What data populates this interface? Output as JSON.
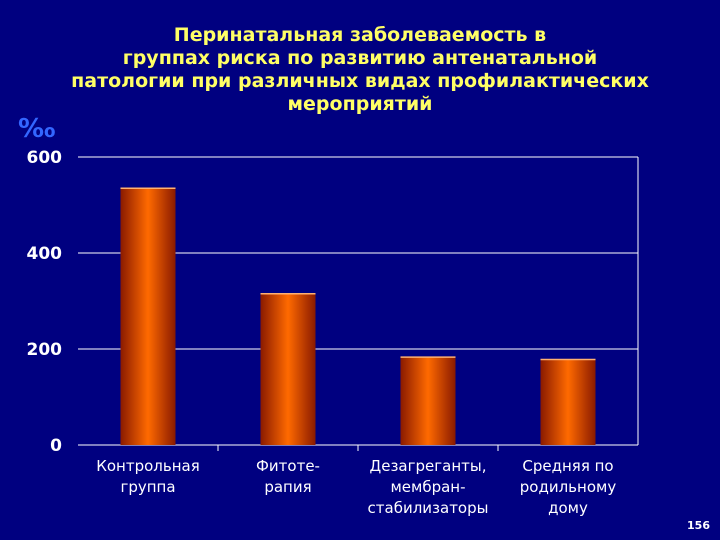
{
  "slide": {
    "title_lines": [
      "Перинатальная заболеваемость в",
      "группах риска по развитию антенатальной",
      "патологии при различных видах профилактических",
      "мероприятий"
    ],
    "unit_label": "‰",
    "page_number": "156"
  },
  "colors": {
    "background": "#000080",
    "title": "#ffff66",
    "unit": "#3366ff",
    "bar_center": "#ff6a00",
    "bar_edge": "#8a1a00",
    "grid": "#ffffff"
  },
  "chart_data": {
    "type": "bar",
    "title": "Перинатальная заболеваемость в группах риска по развитию антенатальной патологии при различных видах профилактических мероприятий",
    "ylabel": "‰",
    "xlabel": "",
    "ylim": [
      0,
      600
    ],
    "yticks": [
      0,
      200,
      400,
      600
    ],
    "grid": true,
    "categories": [
      [
        "Контрольная",
        "группа"
      ],
      [
        "Фитоте-",
        "рапия"
      ],
      [
        "Дезагреганты,",
        "мембран-",
        "стабилизаторы"
      ],
      [
        "Средняя по",
        "родильному",
        "дому"
      ]
    ],
    "values": [
      535,
      315,
      183,
      178
    ]
  }
}
